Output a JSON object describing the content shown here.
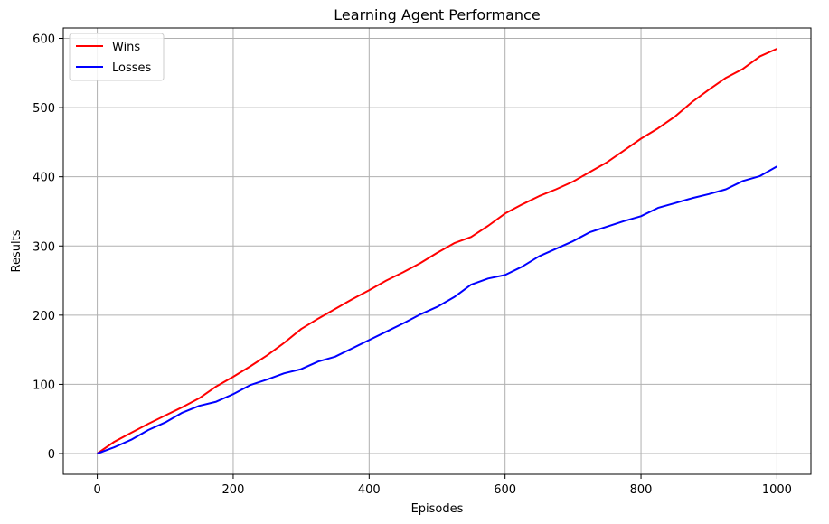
{
  "chart_data": {
    "type": "line",
    "title": "Learning Agent Performance",
    "xlabel": "Episodes",
    "ylabel": "Results",
    "xlim": [
      -50,
      1050
    ],
    "ylim": [
      -30,
      615
    ],
    "xticks": [
      0,
      200,
      400,
      600,
      800,
      1000
    ],
    "yticks": [
      0,
      100,
      200,
      300,
      400,
      500,
      600
    ],
    "grid": true,
    "legend_position": "top-left",
    "series": [
      {
        "name": "Wins",
        "color": "#ff0000",
        "x": [
          0,
          25,
          50,
          75,
          100,
          125,
          150,
          175,
          200,
          225,
          250,
          275,
          300,
          325,
          350,
          375,
          400,
          425,
          450,
          475,
          500,
          525,
          550,
          575,
          600,
          625,
          650,
          675,
          700,
          725,
          750,
          775,
          800,
          825,
          850,
          875,
          900,
          925,
          950,
          975,
          1000
        ],
        "y": [
          0,
          17,
          30,
          43,
          55,
          67,
          80,
          97,
          111,
          126,
          142,
          160,
          180,
          195,
          209,
          223,
          236,
          250,
          262,
          275,
          290,
          304,
          313,
          329,
          347,
          360,
          372,
          382,
          393,
          407,
          421,
          438,
          455,
          470,
          487,
          508,
          526,
          543,
          556,
          574,
          585
        ]
      },
      {
        "name": "Losses",
        "color": "#0000ff",
        "x": [
          0,
          25,
          50,
          75,
          100,
          125,
          150,
          175,
          200,
          225,
          250,
          275,
          300,
          325,
          350,
          375,
          400,
          425,
          450,
          475,
          500,
          525,
          550,
          575,
          600,
          625,
          650,
          675,
          700,
          725,
          750,
          775,
          800,
          825,
          850,
          875,
          900,
          925,
          950,
          975,
          1000
        ],
        "y": [
          0,
          9,
          20,
          34,
          45,
          59,
          69,
          75,
          86,
          99,
          107,
          116,
          122,
          133,
          140,
          152,
          164,
          176,
          188,
          201,
          212,
          226,
          244,
          253,
          258,
          270,
          285,
          296,
          307,
          320,
          328,
          336,
          343,
          355,
          362,
          369,
          375,
          382,
          394,
          401,
          415
        ]
      }
    ]
  }
}
